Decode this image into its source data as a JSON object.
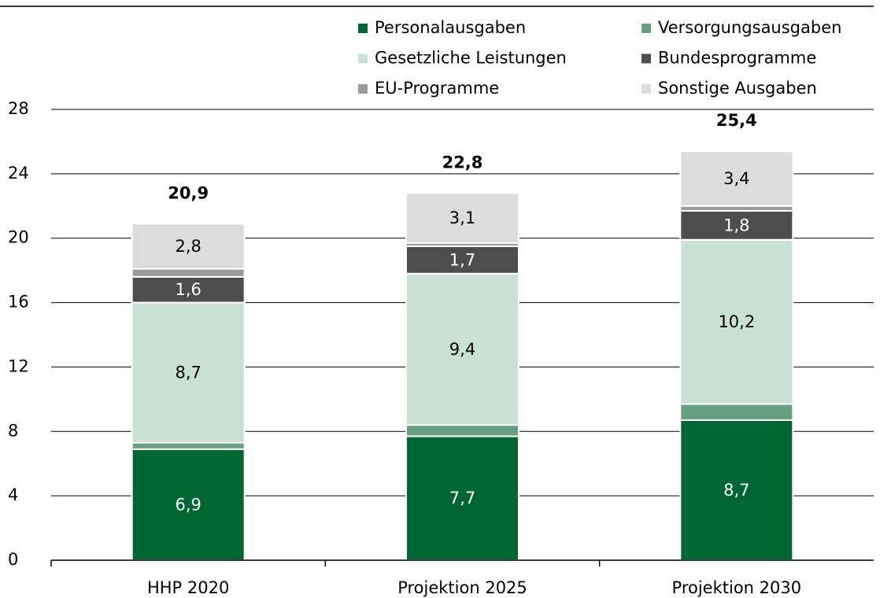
{
  "chart_data": {
    "type": "stacked_bar",
    "categories": [
      "HHP 2020",
      "Projektion 2025",
      "Projektion 2030"
    ],
    "series": [
      {
        "name": "Personalausgaben",
        "color": "#006633",
        "values": [
          6.9,
          7.7,
          8.7
        ],
        "value_labels": [
          "6,9",
          "7,7",
          "8,7"
        ]
      },
      {
        "name": "Versorgungsausgaben",
        "color": "#66a080",
        "values": [
          0.4,
          0.7,
          1.0
        ]
      },
      {
        "name": "Gesetzliche Leistungen",
        "color": "#c9e0d5",
        "values": [
          8.7,
          9.4,
          10.2
        ],
        "value_labels": [
          "8,7",
          "9,4",
          "10,2"
        ]
      },
      {
        "name": "Bundesprogramme",
        "color": "#4d4d4d",
        "values": [
          1.6,
          1.7,
          1.8
        ],
        "value_labels": [
          "1,6",
          "1,7",
          "1,8"
        ]
      },
      {
        "name": "EU-Programme",
        "color": "#999999",
        "values": [
          0.5,
          0.2,
          0.3
        ]
      },
      {
        "name": "Sonstige Ausgaben",
        "color": "#dcdcdc",
        "values": [
          2.8,
          3.1,
          3.4
        ],
        "value_labels": [
          "2,8",
          "3,1",
          "3,4"
        ]
      }
    ],
    "totals": [
      20.9,
      22.8,
      25.4
    ],
    "total_labels": [
      "20,9",
      "22,8",
      "25,4"
    ],
    "ylim": [
      0,
      28
    ],
    "yticks": [
      0,
      4,
      8,
      12,
      16,
      20,
      24,
      28
    ],
    "grid": true
  }
}
